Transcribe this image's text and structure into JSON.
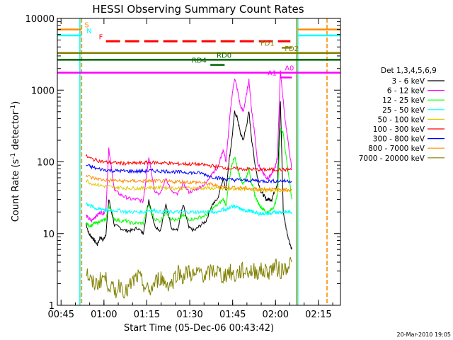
{
  "chart_data": {
    "type": "line",
    "title": "HESSI Observing Summary Count Rates",
    "xlabel": "Start Time (05-Dec-06 00:43:42)",
    "ylabel_parts": [
      "Count Rate (s",
      "-1",
      " detector",
      "-1",
      ")"
    ],
    "y_scale": "log",
    "ylim": [
      1,
      10000
    ],
    "xlim_minutes": [
      0,
      99
    ],
    "x_start_clock": "00:43:42",
    "x_ticks": [
      {
        "label": "00:45",
        "t": 1.3
      },
      {
        "label": "01:00",
        "t": 16.3
      },
      {
        "label": "01:15",
        "t": 31.3
      },
      {
        "label": "01:30",
        "t": 46.3
      },
      {
        "label": "01:45",
        "t": 61.3
      },
      {
        "label": "02:00",
        "t": 76.3
      },
      {
        "label": "02:15",
        "t": 91.3
      }
    ],
    "y_ticks": [
      {
        "label": "1",
        "v": 1
      },
      {
        "label": "10",
        "v": 10
      },
      {
        "label": "100",
        "v": 100
      },
      {
        "label": "1000",
        "v": 1000
      },
      {
        "label": "10000",
        "v": 10000
      }
    ],
    "legend": {
      "placement": "right",
      "header": "Det 1,3,4,5,6,9",
      "entries": [
        {
          "label": "3 - 6 keV",
          "color": "#000000"
        },
        {
          "label": "6 - 12 keV",
          "color": "#ff00ff"
        },
        {
          "label": "12 - 25 keV",
          "color": "#00ff00"
        },
        {
          "label": "25 - 50 keV",
          "color": "#00ffff"
        },
        {
          "label": "50 - 100 keV",
          "color": "#e0c800"
        },
        {
          "label": "100 - 300 keV",
          "color": "#ff0000"
        },
        {
          "label": "300 - 800 keV",
          "color": "#0000ff"
        },
        {
          "label": "800 - 7000 keV",
          "color": "#ff8c00"
        },
        {
          "label": "7000 - 20000 keV",
          "color": "#808000"
        }
      ]
    },
    "series": [
      {
        "name": "3 - 6 keV",
        "color": "#000000",
        "x": [
          10,
          11,
          12,
          13,
          14,
          15,
          16,
          17,
          18,
          20,
          22,
          24,
          26,
          28,
          30,
          32,
          34,
          36,
          38,
          40,
          42,
          44,
          46,
          48,
          50,
          52,
          54,
          56,
          58,
          59,
          60,
          61,
          62,
          63,
          64,
          65,
          66,
          67,
          68,
          69,
          70,
          71,
          72,
          73,
          74,
          75,
          76,
          77,
          78,
          79,
          80,
          81,
          82
        ],
        "y": [
          14,
          10,
          9,
          8,
          7,
          9,
          8,
          10,
          30,
          13,
          12,
          11,
          11,
          12,
          10,
          30,
          13,
          11,
          25,
          12,
          11,
          25,
          12,
          11,
          13,
          15,
          25,
          30,
          60,
          40,
          100,
          200,
          500,
          400,
          250,
          200,
          300,
          500,
          200,
          100,
          60,
          40,
          35,
          30,
          30,
          30,
          40,
          50,
          700,
          20,
          12,
          8,
          6
        ]
      },
      {
        "name": "6 - 12 keV",
        "color": "#ff00ff",
        "x": [
          10,
          11,
          12,
          13,
          14,
          15,
          16,
          17,
          18,
          20,
          22,
          24,
          26,
          28,
          30,
          32,
          34,
          36,
          38,
          40,
          42,
          44,
          46,
          48,
          50,
          52,
          54,
          56,
          58,
          59,
          60,
          61,
          62,
          63,
          64,
          65,
          66,
          67,
          68,
          69,
          70,
          71,
          72,
          73,
          74,
          75,
          76,
          77,
          78,
          79,
          80,
          81,
          82
        ],
        "y": [
          18,
          16,
          15,
          17,
          18,
          20,
          19,
          22,
          150,
          40,
          35,
          32,
          30,
          30,
          28,
          120,
          40,
          35,
          60,
          38,
          35,
          50,
          38,
          40,
          45,
          50,
          70,
          80,
          150,
          100,
          300,
          800,
          1500,
          1000,
          600,
          500,
          800,
          1400,
          500,
          250,
          100,
          80,
          70,
          60,
          60,
          70,
          80,
          120,
          1800,
          700,
          300,
          150,
          80
        ]
      },
      {
        "name": "12 - 25 keV",
        "color": "#00ff00",
        "x": [
          10,
          11,
          12,
          13,
          14,
          15,
          16,
          17,
          18,
          20,
          22,
          24,
          26,
          28,
          30,
          32,
          34,
          36,
          38,
          40,
          42,
          44,
          46,
          48,
          50,
          52,
          54,
          56,
          58,
          59,
          60,
          61,
          62,
          63,
          64,
          65,
          66,
          67,
          68,
          69,
          70,
          71,
          72,
          73,
          74,
          75,
          76,
          77,
          78,
          79,
          80,
          81,
          82
        ],
        "y": [
          14,
          13,
          13,
          14,
          14,
          15,
          15,
          16,
          25,
          16,
          15,
          15,
          14,
          14,
          14,
          25,
          16,
          15,
          20,
          16,
          15,
          18,
          16,
          16,
          17,
          18,
          22,
          25,
          30,
          25,
          50,
          90,
          120,
          80,
          60,
          50,
          60,
          80,
          50,
          35,
          28,
          24,
          22,
          20,
          20,
          22,
          25,
          35,
          300,
          250,
          120,
          60,
          30
        ]
      },
      {
        "name": "25 - 50 keV",
        "color": "#00ffff",
        "x": [
          10,
          11,
          12,
          13,
          14,
          15,
          16,
          17,
          18,
          20,
          22,
          24,
          26,
          28,
          30,
          32,
          34,
          36,
          38,
          40,
          42,
          44,
          46,
          48,
          50,
          52,
          54,
          56,
          58,
          59,
          60,
          61,
          62,
          63,
          64,
          65,
          66,
          67,
          68,
          69,
          70,
          71,
          72,
          73,
          74,
          75,
          76,
          77,
          78,
          79,
          80,
          81,
          82
        ],
        "y": [
          27,
          25,
          24,
          23,
          22,
          22,
          22,
          21,
          21,
          21,
          21,
          20,
          20,
          20,
          20,
          21,
          21,
          20,
          20,
          20,
          20,
          20,
          20,
          20,
          20,
          20,
          20,
          20,
          22,
          21,
          23,
          24,
          24,
          23,
          22,
          21,
          21,
          21,
          20,
          20,
          19,
          19,
          19,
          19,
          19,
          19,
          20,
          20,
          20,
          20,
          20,
          20,
          20
        ]
      },
      {
        "name": "50 - 100 keV",
        "color": "#e0c800",
        "x": [
          10,
          12,
          14,
          16,
          18,
          20,
          22,
          24,
          26,
          28,
          30,
          32,
          34,
          36,
          38,
          40,
          42,
          44,
          46,
          48,
          50,
          52,
          54,
          56,
          58,
          60,
          62,
          64,
          66,
          68,
          70,
          72,
          74,
          76,
          78,
          80,
          82
        ],
        "y": [
          55,
          50,
          48,
          46,
          45,
          44,
          44,
          43,
          43,
          43,
          43,
          44,
          44,
          44,
          44,
          43,
          43,
          43,
          43,
          43,
          43,
          43,
          43,
          42,
          42,
          42,
          42,
          42,
          41,
          41,
          41,
          40,
          40,
          40,
          40,
          40,
          40
        ]
      },
      {
        "name": "100 - 300 keV",
        "color": "#ff0000",
        "x": [
          10,
          12,
          14,
          16,
          18,
          20,
          22,
          24,
          26,
          28,
          30,
          32,
          34,
          36,
          38,
          40,
          42,
          44,
          46,
          48,
          50,
          52,
          54,
          56,
          58,
          60,
          62,
          64,
          66,
          68,
          70,
          72,
          74,
          76,
          78,
          80,
          82
        ],
        "y": [
          120,
          110,
          105,
          100,
          98,
          97,
          96,
          95,
          95,
          96,
          97,
          98,
          98,
          97,
          96,
          95,
          94,
          94,
          93,
          93,
          92,
          90,
          88,
          85,
          83,
          82,
          80,
          80,
          79,
          79,
          78,
          78,
          78,
          78,
          78,
          78,
          78
        ]
      },
      {
        "name": "300 - 800 keV",
        "color": "#0000ff",
        "x": [
          10,
          12,
          14,
          16,
          18,
          20,
          22,
          24,
          26,
          28,
          30,
          32,
          34,
          36,
          38,
          40,
          42,
          44,
          46,
          48,
          50,
          52,
          54,
          56,
          58,
          60,
          62,
          64,
          66,
          68,
          70,
          72,
          74,
          76,
          78,
          80,
          82
        ],
        "y": [
          90,
          85,
          80,
          78,
          76,
          75,
          75,
          74,
          74,
          74,
          74,
          75,
          75,
          74,
          74,
          73,
          72,
          72,
          71,
          70,
          70,
          66,
          62,
          60,
          58,
          57,
          56,
          56,
          55,
          55,
          55,
          54,
          54,
          54,
          54,
          54,
          54
        ]
      },
      {
        "name": "800 - 7000 keV",
        "color": "#ff8c00",
        "x": [
          10,
          12,
          14,
          16,
          18,
          20,
          22,
          24,
          26,
          28,
          30,
          32,
          34,
          36,
          38,
          40,
          42,
          44,
          46,
          48,
          50,
          52,
          54,
          56,
          58,
          60,
          62,
          64,
          66,
          68,
          70,
          72,
          74,
          76,
          78,
          80,
          82
        ],
        "y": [
          65,
          60,
          58,
          56,
          55,
          55,
          54,
          54,
          54,
          54,
          54,
          54,
          54,
          54,
          53,
          53,
          53,
          53,
          52,
          52,
          52,
          50,
          48,
          46,
          45,
          44,
          44,
          43,
          43,
          42,
          42,
          42,
          42,
          41,
          41,
          41,
          41
        ]
      },
      {
        "name": "7000 - 20000 keV",
        "color": "#808000",
        "x": [
          10,
          12,
          14,
          16,
          18,
          20,
          22,
          24,
          26,
          28,
          30,
          32,
          34,
          36,
          38,
          40,
          42,
          44,
          46,
          48,
          50,
          52,
          54,
          56,
          58,
          60,
          62,
          64,
          66,
          68,
          70,
          72,
          74,
          76,
          78,
          80,
          82
        ],
        "y": [
          3,
          2,
          2,
          2.5,
          2,
          1.5,
          2,
          1.5,
          2,
          2.5,
          2,
          1.5,
          2,
          2.5,
          2,
          2,
          3,
          2.5,
          3,
          2.5,
          3,
          2.5,
          3,
          3,
          2.5,
          3,
          2.5,
          3,
          3,
          3,
          3,
          3,
          3,
          3.5,
          3,
          3.5,
          4
        ]
      }
    ],
    "vertical_markers": [
      {
        "t": 8.5,
        "color": "#ff8c00",
        "dashed": true
      },
      {
        "t": 7.9,
        "color": "#00ffff",
        "dashed": false
      },
      {
        "t": 84.1,
        "color": "#00ffff",
        "dashed": false
      },
      {
        "t": 83.6,
        "color": "#ff8c00",
        "dashed": false
      },
      {
        "t": 94.3,
        "color": "#ff8c00",
        "dashed": true
      }
    ],
    "flag_bars": [
      {
        "label": "S",
        "color": "#ff8c00",
        "v": 7000,
        "segments": [
          [
            0,
            8.5
          ],
          [
            84.1,
            99
          ]
        ],
        "label_t": 9.5
      },
      {
        "label": "N",
        "color": "#00ffff",
        "v": 5800,
        "segments": [
          [
            0,
            8.5
          ],
          [
            84.1,
            99
          ]
        ],
        "label_t": 10.2
      },
      {
        "label": "F",
        "color": "#ff0000",
        "v": 4800,
        "dashed": true,
        "segments": [
          [
            17,
            81.5
          ]
        ],
        "label_t": 14.5
      },
      {
        "label": "FD1",
        "color": "#808000",
        "v": 3900,
        "segments": [
          [
            78.5,
            82
          ]
        ],
        "label_t": 71
      },
      {
        "label": "FD2",
        "color": "#808000",
        "v": 3300,
        "segments": [
          [
            0,
            99
          ]
        ],
        "label_t": 79.5
      },
      {
        "label": "RD0",
        "color": "#006400",
        "v": 2650,
        "segments": [
          [
            0,
            99
          ]
        ],
        "label_t": 55.7
      },
      {
        "label": "RD4",
        "color": "#006400",
        "v": 2250,
        "segments": [
          [
            53.5,
            58.5
          ]
        ],
        "label_t": 47
      },
      {
        "label": "A0",
        "color": "#ff00ff",
        "v": 1750,
        "segments": [
          [
            0,
            99
          ]
        ],
        "label_t": 79.5
      },
      {
        "label": "A1",
        "color": "#ff00ff",
        "v": 1500,
        "segments": [
          [
            77.8,
            82
          ]
        ],
        "label_t": 73.5
      }
    ]
  },
  "footer": {
    "timestamp": "20-Mar-2010 19:05"
  }
}
